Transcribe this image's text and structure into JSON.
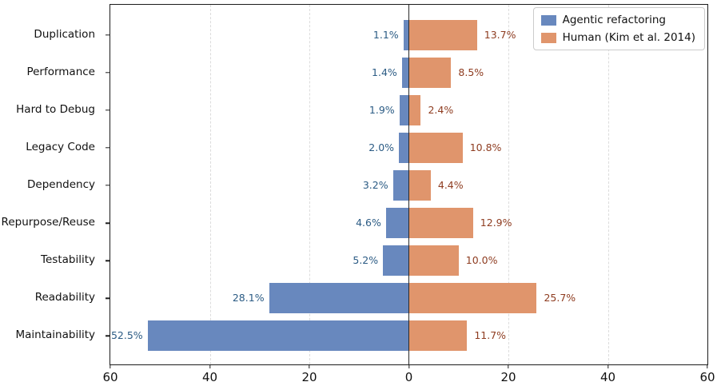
{
  "chart_data": {
    "type": "bar",
    "variant": "horizontal-diverging",
    "title": "",
    "categories": [
      "Duplication",
      "Performance",
      "Hard to Debug",
      "Legacy Code",
      "Dependency",
      "Repurpose/Reuse",
      "Testability",
      "Readability",
      "Maintainability"
    ],
    "series": [
      {
        "name": "Agentic refactoring",
        "side": "left",
        "color": "#6888BE",
        "label_color": "#2B5B84",
        "values": [
          1.1,
          1.4,
          1.9,
          2.0,
          3.2,
          4.6,
          5.2,
          28.1,
          52.5
        ]
      },
      {
        "name": "Human (Kim et al. 2014)",
        "side": "right",
        "color": "#E0956C",
        "label_color": "#8E3C20",
        "values": [
          13.7,
          8.5,
          2.4,
          10.8,
          4.4,
          12.9,
          10.0,
          25.7,
          11.7
        ]
      }
    ],
    "value_label_suffix": "%",
    "x_tick_labels": [
      "60",
      "40",
      "20",
      "0",
      "20",
      "40",
      "60"
    ],
    "xlim": [
      -60,
      60
    ],
    "grid": {
      "axis": "x",
      "style": "dashed",
      "color": "#dcdcdc"
    },
    "center_line_color": "#2b2b2b",
    "legend_position": "upper-right"
  }
}
